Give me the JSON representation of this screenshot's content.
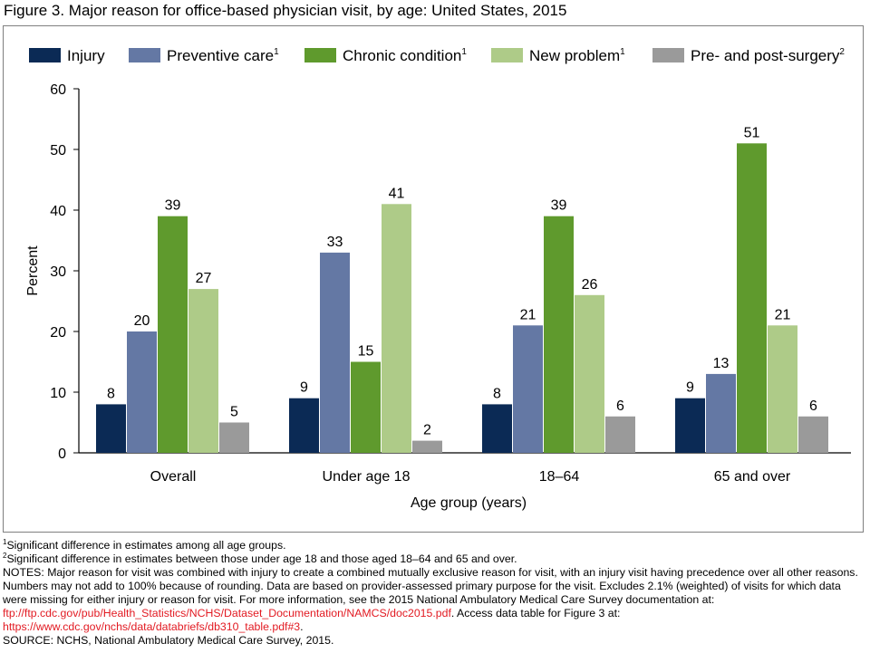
{
  "figure_title": "Figure 3. Major reason for office-based physician visit, by age: United States, 2015",
  "chart_data": {
    "type": "bar",
    "xlabel": "Age group (years)",
    "ylabel": "Percent",
    "ylim": [
      0,
      60
    ],
    "yticks": [
      0,
      10,
      20,
      30,
      40,
      50,
      60
    ],
    "grid": false,
    "legend_position": "top",
    "categories": [
      "Overall",
      "Under age 18",
      "18–64",
      "65 and over"
    ],
    "series": [
      {
        "name": "Injury",
        "sup": "",
        "color": "#0b2a55",
        "values": [
          8,
          9,
          8,
          9
        ]
      },
      {
        "name": "Preventive care",
        "sup": "1",
        "color": "#6478a4",
        "values": [
          20,
          33,
          21,
          13
        ]
      },
      {
        "name": "Chronic condition",
        "sup": "1",
        "color": "#5f9a2d",
        "values": [
          39,
          15,
          39,
          51
        ]
      },
      {
        "name": "New problem",
        "sup": "1",
        "color": "#aecb88",
        "values": [
          27,
          41,
          26,
          21
        ]
      },
      {
        "name": "Pre- and post-surgery",
        "sup": "2",
        "color": "#9a9a9a",
        "values": [
          5,
          2,
          6,
          6
        ]
      }
    ]
  },
  "footnotes": {
    "note1_sup": "1",
    "note1": "Significant difference in estimates among all age groups.",
    "note2_sup": "2",
    "note2": "Significant difference in estimates between those under age 18 and those aged 18–64 and 65 and over.",
    "notes_text": "NOTES: Major reason for visit was combined with injury to create a combined mutually exclusive reason for visit, with an injury visit having precedence over all other reasons. Numbers may not add to 100% because of rounding. Data are based on provider-assessed primary purpose for the visit. Excludes 2.1% (weighted) of visits for which data were missing for either injury or reason for visit. For more information, see the 2015 National Ambulatory Medical Care Survey documentation at: ",
    "link1": "ftp://ftp.cdc.gov/pub/Health_Statistics/NCHS/Dataset_Documentation/NAMCS/doc2015.pdf",
    "notes_mid": ". Access data table for Figure 3 at: ",
    "link2": "https://www.cdc.gov/nchs/data/databriefs/db310_table.pdf#3",
    "notes_end": ".",
    "source": "SOURCE: NCHS, National Ambulatory Medical Care Survey, 2015."
  }
}
